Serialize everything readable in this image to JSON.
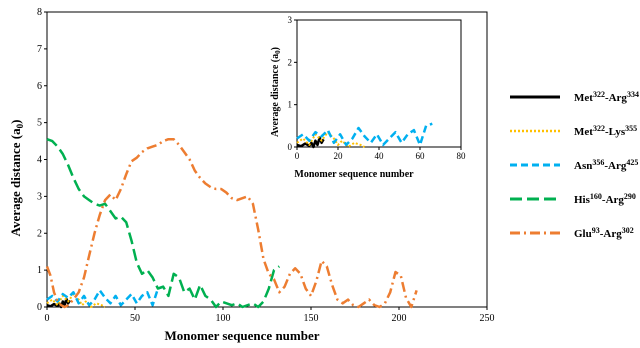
{
  "chart_data": [
    {
      "type": "line",
      "xlabel": "Monomer sequence number",
      "ylabel": "Average distance (a0)",
      "xlim": [
        0,
        250
      ],
      "ylim": [
        0,
        8
      ],
      "xticks": [
        0,
        50,
        100,
        150,
        200,
        250
      ],
      "yticks": [
        0,
        1,
        2,
        3,
        4,
        5,
        6,
        7,
        8
      ],
      "legend_position": "right",
      "series": [
        {
          "name": "Met322-Arg334",
          "label_parts": [
            "Met",
            "322",
            "-Arg",
            "334"
          ],
          "color": "#000000",
          "dash": "solid",
          "x": [
            0,
            2,
            4,
            6,
            7,
            8,
            9,
            10,
            11,
            12,
            13
          ],
          "y": [
            0.05,
            0.02,
            0.08,
            0.03,
            0.1,
            0.0,
            0.15,
            0.05,
            0.22,
            0.1,
            0.18
          ]
        },
        {
          "name": "Met322-Lys355",
          "label_parts": [
            "Met",
            "322",
            "-Lys",
            "355"
          ],
          "color": "#FFC000",
          "dash": "dotted",
          "x": [
            0,
            3,
            6,
            9,
            12,
            15,
            18,
            20,
            22,
            25,
            28,
            31,
            33
          ],
          "y": [
            0.1,
            0.2,
            0.05,
            0.3,
            0.15,
            0.35,
            0.2,
            0.05,
            0.15,
            0.0,
            0.1,
            0.05,
            0.0
          ]
        },
        {
          "name": "Asn356-Arg425",
          "label_parts": [
            "Asn",
            "356",
            "-Arg",
            "425"
          ],
          "color": "#00B0F0",
          "dash": "dashed",
          "x": [
            0,
            3,
            6,
            9,
            12,
            15,
            18,
            21,
            24,
            27,
            30,
            33,
            36,
            39,
            42,
            45,
            48,
            51,
            54,
            57,
            60,
            63,
            66
          ],
          "y": [
            0.2,
            0.3,
            0.15,
            0.35,
            0.25,
            0.4,
            0.1,
            0.3,
            0.05,
            0.2,
            0.45,
            0.25,
            0.1,
            0.3,
            0.05,
            0.2,
            0.35,
            0.1,
            0.3,
            0.4,
            0.05,
            0.5,
            0.55
          ]
        },
        {
          "name": "His160-Arg290",
          "label_parts": [
            "His",
            "160",
            "-Arg",
            "290"
          ],
          "color": "#00B050",
          "dash": "longdash",
          "x": [
            0,
            3,
            6,
            9,
            12,
            15,
            18,
            21,
            24,
            27,
            30,
            33,
            36,
            39,
            42,
            45,
            48,
            51,
            54,
            57,
            60,
            63,
            66,
            69,
            72,
            75,
            78,
            81,
            84,
            87,
            90,
            93,
            96,
            99,
            102,
            105,
            108,
            111,
            114,
            117,
            120,
            123,
            126,
            129,
            132
          ],
          "y": [
            4.55,
            4.5,
            4.35,
            4.15,
            3.85,
            3.5,
            3.2,
            3.0,
            2.9,
            2.8,
            2.75,
            2.8,
            2.6,
            2.4,
            2.45,
            2.3,
            1.8,
            1.2,
            0.9,
            1.0,
            0.8,
            0.5,
            0.55,
            0.3,
            0.9,
            0.8,
            0.4,
            0.5,
            0.2,
            0.6,
            0.3,
            0.2,
            0.0,
            0.15,
            0.1,
            0.05,
            0.1,
            0.0,
            0.05,
            0.1,
            0.0,
            0.15,
            0.5,
            1.0,
            1.1
          ]
        },
        {
          "name": "Glu93-Arg302",
          "label_parts": [
            "Glu",
            "93",
            "-Arg",
            "302"
          ],
          "color": "#ED7D31",
          "dash": "dashdot",
          "x": [
            0,
            2,
            4,
            6,
            8,
            10,
            12,
            15,
            18,
            21,
            24,
            27,
            30,
            33,
            36,
            39,
            42,
            45,
            48,
            51,
            54,
            57,
            60,
            63,
            66,
            69,
            72,
            75,
            78,
            81,
            84,
            87,
            90,
            93,
            96,
            99,
            102,
            105,
            108,
            111,
            114,
            117,
            120,
            123,
            126,
            129,
            132,
            135,
            138,
            141,
            144,
            147,
            150,
            153,
            156,
            159,
            162,
            165,
            168,
            171,
            174,
            177,
            180,
            183,
            186,
            189,
            192,
            195,
            198,
            201,
            204,
            207,
            210
          ],
          "y": [
            1.1,
            0.85,
            0.4,
            0.15,
            0.05,
            0.0,
            0.05,
            0.2,
            0.4,
            0.8,
            1.4,
            2.0,
            2.5,
            2.9,
            3.05,
            2.9,
            3.2,
            3.6,
            3.95,
            4.05,
            4.2,
            4.3,
            4.35,
            4.4,
            4.5,
            4.55,
            4.55,
            4.4,
            4.2,
            4.0,
            3.7,
            3.5,
            3.35,
            3.25,
            3.2,
            3.2,
            3.1,
            2.95,
            2.9,
            2.95,
            3.0,
            2.8,
            2.1,
            1.3,
            0.9,
            0.75,
            0.4,
            0.55,
            0.9,
            1.05,
            0.9,
            0.5,
            0.3,
            0.7,
            1.25,
            1.1,
            0.6,
            0.2,
            0.1,
            0.2,
            0.05,
            0.0,
            0.1,
            0.2,
            0.05,
            0.0,
            0.1,
            0.4,
            0.95,
            0.85,
            0.25,
            0.0,
            0.45
          ]
        }
      ]
    },
    {
      "type": "line",
      "role": "inset",
      "xlabel": "Monomer sequence number",
      "ylabel": "Average distance (a0)",
      "xlim": [
        0,
        80
      ],
      "ylim": [
        0,
        3
      ],
      "xticks": [
        0,
        20,
        40,
        60,
        80
      ],
      "yticks": [
        0,
        1,
        2,
        3
      ],
      "series_ref": [
        "Met322-Arg334",
        "Met322-Lys355",
        "Asn356-Arg425"
      ]
    }
  ],
  "labels": {
    "ylabel_main": "Average distance (a",
    "ylabel_sub": "0",
    "ylabel_close": ")",
    "xlabel_main": "Monomer sequence number",
    "ylabel_inset": "Average distance (a",
    "xlabel_inset": "Monomer sequence number"
  }
}
